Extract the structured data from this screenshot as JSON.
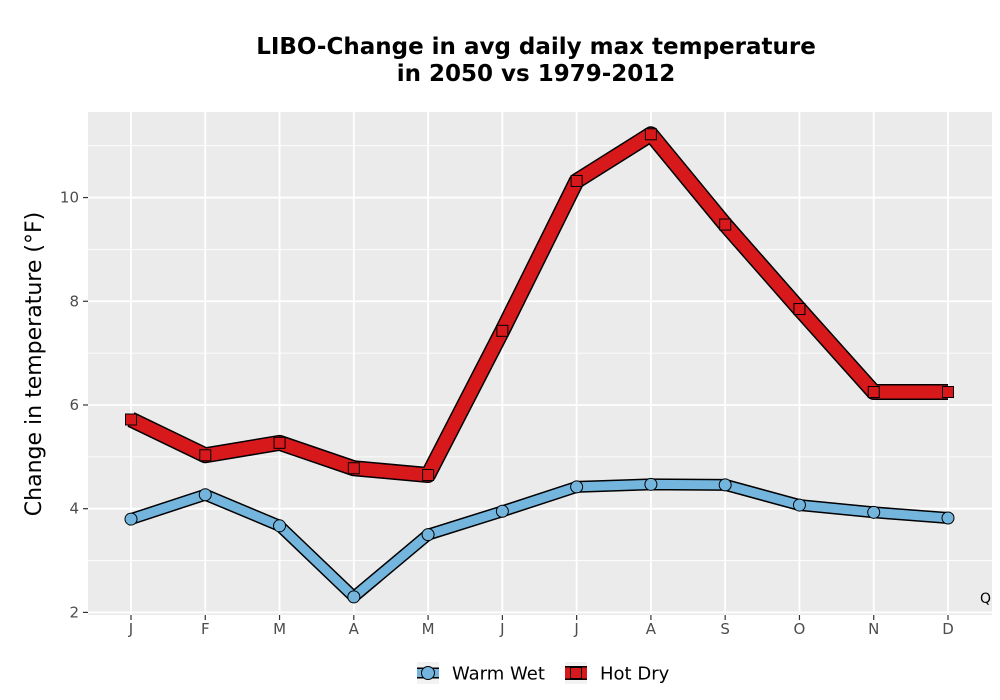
{
  "chart_data": {
    "type": "line",
    "title": "LIBO-Change in avg daily max temperature\nin 2050 vs 1979-2012",
    "xlabel": "",
    "ylabel": "Change in temperature (°F)",
    "categories": [
      "J",
      "F",
      "M",
      "A",
      "M",
      "J",
      "J",
      "A",
      "S",
      "O",
      "N",
      "D"
    ],
    "ylim": [
      1.95,
      11.65
    ],
    "yticks": [
      2,
      4,
      6,
      8,
      10
    ],
    "grid": true,
    "legend_position": "bottom",
    "series": [
      {
        "name": "Warm Wet",
        "color": "#74b5de",
        "marker": "circle",
        "values": [
          3.8,
          4.27,
          3.67,
          2.3,
          3.5,
          3.95,
          4.42,
          4.47,
          4.46,
          4.07,
          3.93,
          3.82
        ]
      },
      {
        "name": "Hot Dry",
        "color": "#d7191c",
        "marker": "square",
        "values": [
          5.72,
          5.03,
          5.27,
          4.78,
          4.65,
          7.43,
          10.32,
          11.22,
          9.48,
          7.85,
          6.25,
          6.25
        ]
      }
    ],
    "corner_note": "Q"
  }
}
